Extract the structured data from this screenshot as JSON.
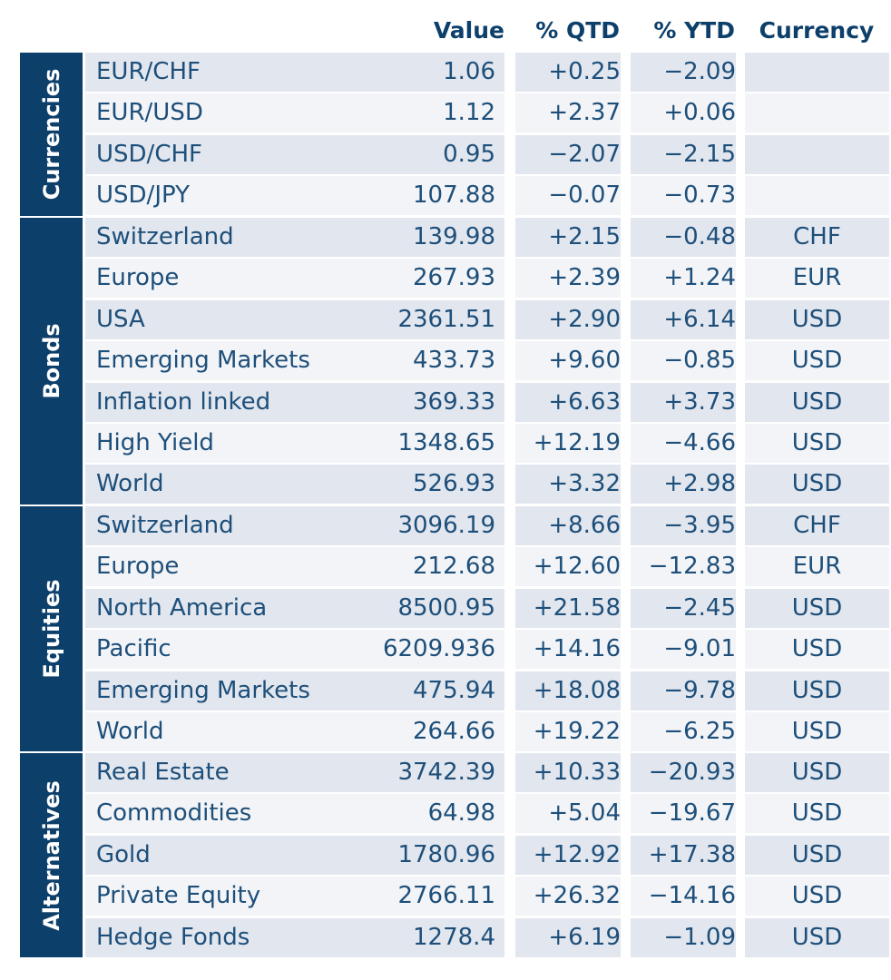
{
  "header": {
    "value": "Value",
    "qtd": "% QTD",
    "ytd": "% YTD",
    "currency": "Currency"
  },
  "groups": [
    {
      "label": "Currencies",
      "rows": [
        {
          "name": "EUR/CHF",
          "value": "1.06",
          "qtd": "+0.25",
          "ytd": "−2.09",
          "currency": ""
        },
        {
          "name": "EUR/USD",
          "value": "1.12",
          "qtd": "+2.37",
          "ytd": "+0.06",
          "currency": ""
        },
        {
          "name": "USD/CHF",
          "value": "0.95",
          "qtd": "−2.07",
          "ytd": "−2.15",
          "currency": ""
        },
        {
          "name": "USD/JPY",
          "value": "107.88",
          "qtd": "−0.07",
          "ytd": "−0.73",
          "currency": ""
        }
      ]
    },
    {
      "label": "Bonds",
      "rows": [
        {
          "name": "Switzerland",
          "value": "139.98",
          "qtd": "+2.15",
          "ytd": "−0.48",
          "currency": "CHF"
        },
        {
          "name": "Europe",
          "value": "267.93",
          "qtd": "+2.39",
          "ytd": "+1.24",
          "currency": "EUR"
        },
        {
          "name": "USA",
          "value": "2361.51",
          "qtd": "+2.90",
          "ytd": "+6.14",
          "currency": "USD"
        },
        {
          "name": "Emerging Markets",
          "value": "433.73",
          "qtd": "+9.60",
          "ytd": "−0.85",
          "currency": "USD"
        },
        {
          "name": "Inflation linked",
          "value": "369.33",
          "qtd": "+6.63",
          "ytd": "+3.73",
          "currency": "USD"
        },
        {
          "name": "High Yield",
          "value": "1348.65",
          "qtd": "+12.19",
          "ytd": "−4.66",
          "currency": "USD"
        },
        {
          "name": "World",
          "value": "526.93",
          "qtd": "+3.32",
          "ytd": "+2.98",
          "currency": "USD"
        }
      ]
    },
    {
      "label": "Equities",
      "rows": [
        {
          "name": "Switzerland",
          "value": "3096.19",
          "qtd": "+8.66",
          "ytd": "−3.95",
          "currency": "CHF"
        },
        {
          "name": "Europe",
          "value": "212.68",
          "qtd": "+12.60",
          "ytd": "−12.83",
          "currency": "EUR"
        },
        {
          "name": "North America",
          "value": "8500.95",
          "qtd": "+21.58",
          "ytd": "−2.45",
          "currency": "USD"
        },
        {
          "name": "Pacific",
          "value": "6209.936",
          "qtd": "+14.16",
          "ytd": "−9.01",
          "currency": "USD"
        },
        {
          "name": "Emerging Markets",
          "value": "475.94",
          "qtd": "+18.08",
          "ytd": "−9.78",
          "currency": "USD"
        },
        {
          "name": "World",
          "value": "264.66",
          "qtd": "+19.22",
          "ytd": "−6.25",
          "currency": "USD"
        }
      ]
    },
    {
      "label": "Alternatives",
      "rows": [
        {
          "name": "Real Estate",
          "value": "3742.39",
          "qtd": "+10.33",
          "ytd": "−20.93",
          "currency": "USD"
        },
        {
          "name": "Commodities",
          "value": "64.98",
          "qtd": "+5.04",
          "ytd": "−19.67",
          "currency": "USD"
        },
        {
          "name": "Gold",
          "value": "1780.96",
          "qtd": "+12.92",
          "ytd": "+17.38",
          "currency": "USD"
        },
        {
          "name": "Private Equity",
          "value": "2766.11",
          "qtd": "+26.32",
          "ytd": "−14.16",
          "currency": "USD"
        },
        {
          "name": "Hedge Fonds",
          "value": "1278.4",
          "qtd": "+6.19",
          "ytd": "−1.09",
          "currency": "USD"
        }
      ]
    }
  ]
}
